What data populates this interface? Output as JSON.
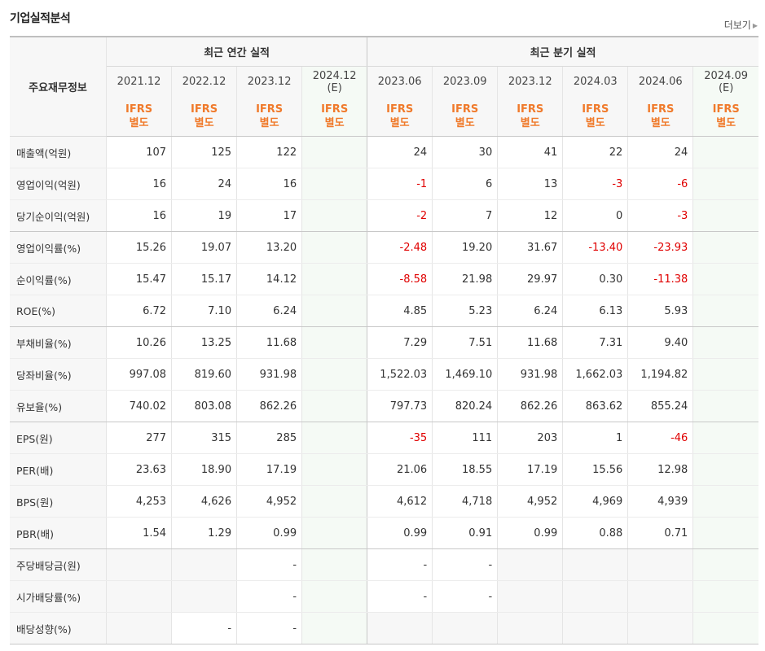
{
  "title": "기업실적분석",
  "more_label": "더보기",
  "header": {
    "corner_label": "주요재무정보",
    "annual_group": "최근 연간 실적",
    "quarter_group": "최근 분기 실적",
    "annual_periods": [
      "2021.12",
      "2022.12",
      "2023.12"
    ],
    "annual_estimate": {
      "period": "2024.12",
      "tag": "(E)"
    },
    "quarter_periods": [
      "2023.06",
      "2023.09",
      "2023.12",
      "2024.03",
      "2024.06"
    ],
    "quarter_estimate": {
      "period": "2024.09",
      "tag": "(E)"
    },
    "basis": {
      "line1": "IFRS",
      "line2": "별도"
    }
  },
  "rows": [
    {
      "label": "매출액(억원)",
      "annual": [
        "107",
        "125",
        "122"
      ],
      "quarter": [
        "24",
        "30",
        "41",
        "22",
        "24"
      ],
      "negative": []
    },
    {
      "label": "영업이익(억원)",
      "annual": [
        "16",
        "24",
        "16"
      ],
      "quarter": [
        "-1",
        "6",
        "13",
        "-3",
        "-6"
      ],
      "negative": [
        3,
        6,
        7
      ]
    },
    {
      "label": "당기순이익(억원)",
      "annual": [
        "16",
        "19",
        "17"
      ],
      "quarter": [
        "-2",
        "7",
        "12",
        "0",
        "-3"
      ],
      "negative": [
        3,
        7
      ]
    },
    {
      "label": "영업이익률(%)",
      "annual": [
        "15.26",
        "19.07",
        "13.20"
      ],
      "quarter": [
        "-2.48",
        "19.20",
        "31.67",
        "-13.40",
        "-23.93"
      ],
      "negative": [
        3,
        6,
        7
      ]
    },
    {
      "label": "순이익률(%)",
      "annual": [
        "15.47",
        "15.17",
        "14.12"
      ],
      "quarter": [
        "-8.58",
        "21.98",
        "29.97",
        "0.30",
        "-11.38"
      ],
      "negative": [
        3,
        7
      ]
    },
    {
      "label": "ROE(%)",
      "annual": [
        "6.72",
        "7.10",
        "6.24"
      ],
      "quarter": [
        "4.85",
        "5.23",
        "6.24",
        "6.13",
        "5.93"
      ],
      "negative": []
    },
    {
      "label": "부채비율(%)",
      "annual": [
        "10.26",
        "13.25",
        "11.68"
      ],
      "quarter": [
        "7.29",
        "7.51",
        "11.68",
        "7.31",
        "9.40"
      ],
      "negative": []
    },
    {
      "label": "당좌비율(%)",
      "annual": [
        "997.08",
        "819.60",
        "931.98"
      ],
      "quarter": [
        "1,522.03",
        "1,469.10",
        "931.98",
        "1,662.03",
        "1,194.82"
      ],
      "negative": []
    },
    {
      "label": "유보율(%)",
      "annual": [
        "740.02",
        "803.08",
        "862.26"
      ],
      "quarter": [
        "797.73",
        "820.24",
        "862.26",
        "863.62",
        "855.24"
      ],
      "negative": []
    },
    {
      "label": "EPS(원)",
      "annual": [
        "277",
        "315",
        "285"
      ],
      "quarter": [
        "-35",
        "111",
        "203",
        "1",
        "-46"
      ],
      "negative": [
        3,
        7
      ]
    },
    {
      "label": "PER(배)",
      "annual": [
        "23.63",
        "18.90",
        "17.19"
      ],
      "quarter": [
        "21.06",
        "18.55",
        "17.19",
        "15.56",
        "12.98"
      ],
      "negative": []
    },
    {
      "label": "BPS(원)",
      "annual": [
        "4,253",
        "4,626",
        "4,952"
      ],
      "quarter": [
        "4,612",
        "4,718",
        "4,952",
        "4,969",
        "4,939"
      ],
      "negative": []
    },
    {
      "label": "PBR(배)",
      "annual": [
        "1.54",
        "1.29",
        "0.99"
      ],
      "quarter": [
        "0.99",
        "0.91",
        "0.99",
        "0.88",
        "0.71"
      ],
      "negative": []
    },
    {
      "label": "주당배당금(원)",
      "annual": [
        "",
        "",
        "-"
      ],
      "quarter": [
        "-",
        "-",
        "",
        "",
        ""
      ],
      "negative": []
    },
    {
      "label": "시가배당률(%)",
      "annual": [
        "",
        "",
        "-"
      ],
      "quarter": [
        "-",
        "-",
        "",
        "",
        ""
      ],
      "negative": []
    },
    {
      "label": "배당성향(%)",
      "annual": [
        "",
        "-",
        "-"
      ],
      "quarter": [
        "",
        "",
        "",
        "",
        ""
      ],
      "negative": []
    }
  ]
}
